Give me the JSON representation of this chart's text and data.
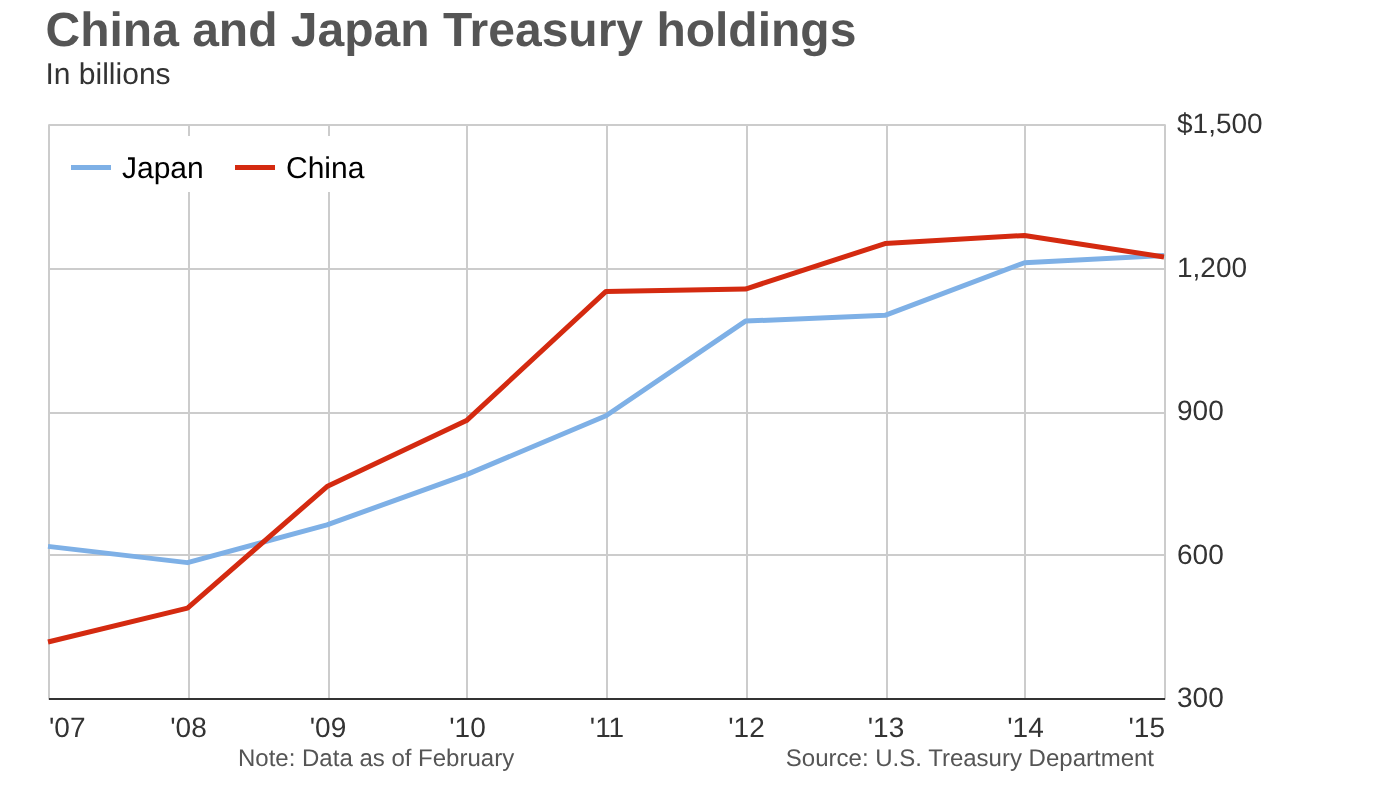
{
  "chart_data": {
    "type": "line",
    "title": "China and Japan Treasury holdings",
    "subtitle": "In billions",
    "categories": [
      "'07",
      "'08",
      "'09",
      "'10",
      "'11",
      "'12",
      "'13",
      "'14",
      "'15"
    ],
    "series": [
      {
        "name": "Japan",
        "color": "#7eb0e6",
        "values": [
          617,
          583,
          662,
          767,
          890,
          1088,
          1100,
          1210,
          1225
        ]
      },
      {
        "name": "China",
        "color": "#d42a10",
        "values": [
          417,
          488,
          742,
          880,
          1150,
          1155,
          1250,
          1267,
          1222
        ]
      }
    ],
    "ylim": [
      300,
      1500
    ],
    "yticks": [
      {
        "value": 300,
        "label": "300"
      },
      {
        "value": 600,
        "label": "600"
      },
      {
        "value": 900,
        "label": "900"
      },
      {
        "value": 1200,
        "label": "1,200"
      },
      {
        "value": 1500,
        "label": "$1,500"
      }
    ],
    "grid": true,
    "legend": "top left",
    "marker": "none",
    "line_style": "solid",
    "annotations": [
      "Note: Data as of February",
      "Source: U.S. Treasury Department"
    ]
  }
}
